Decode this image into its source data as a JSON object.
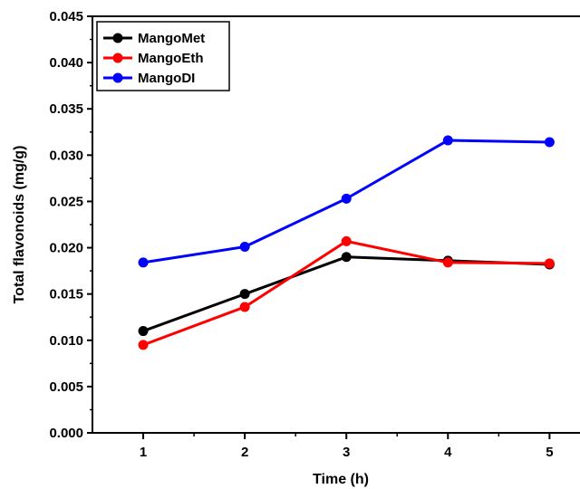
{
  "chart_data": {
    "type": "line",
    "xlabel": "Time (h)",
    "ylabel": "Total flavonoids (mg/g)",
    "x": [
      1,
      2,
      3,
      4,
      5
    ],
    "xlim": [
      0.5,
      5.3
    ],
    "ylim": [
      0,
      0.045
    ],
    "xticks": [
      "1",
      "2",
      "3",
      "4",
      "5"
    ],
    "yticks": [
      "0.000",
      "0.005",
      "0.010",
      "0.015",
      "0.020",
      "0.025",
      "0.030",
      "0.035",
      "0.040",
      "0.045"
    ],
    "legend_position": "top-left",
    "grid": false,
    "series": [
      {
        "name": "MangoMet",
        "color": "#000000",
        "values": [
          0.011,
          0.015,
          0.019,
          0.0186,
          0.0182
        ]
      },
      {
        "name": "MangoEth",
        "color": "#ff0000",
        "values": [
          0.0095,
          0.0136,
          0.0207,
          0.0184,
          0.0183
        ]
      },
      {
        "name": "MangoDI",
        "color": "#0000ff",
        "values": [
          0.0184,
          0.0201,
          0.0253,
          0.0316,
          0.0314
        ]
      }
    ]
  }
}
